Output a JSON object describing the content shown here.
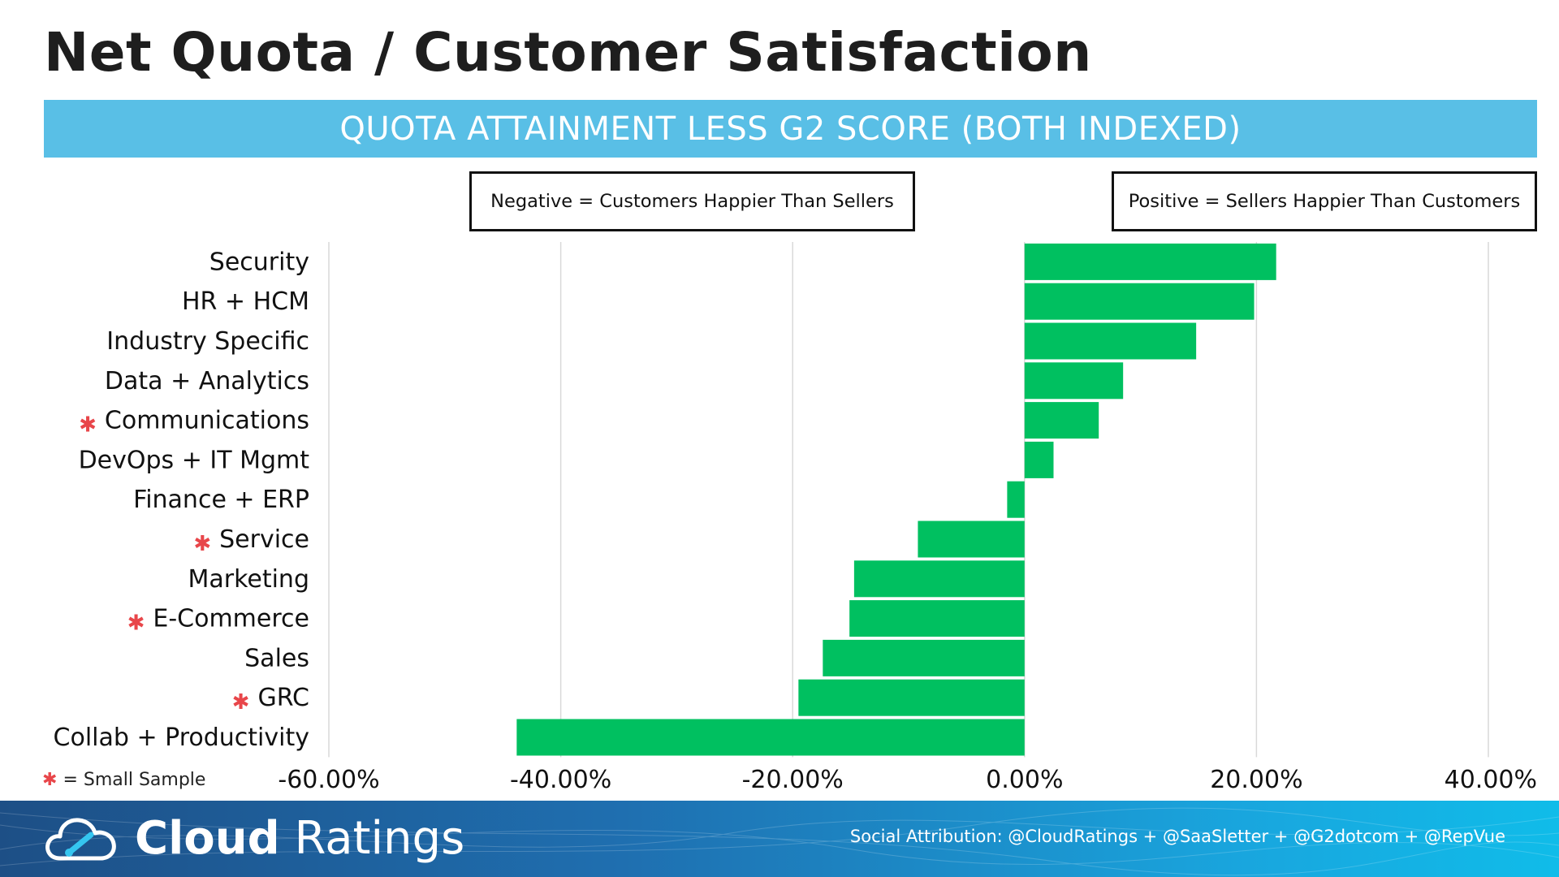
{
  "title": "Net Quota / Customer Satisfaction",
  "banner": "QUOTA ATTAINMENT LESS G2 SCORE (BOTH INDEXED)",
  "notes": {
    "negative": "Negative = Customers Happier Than Sellers",
    "positive": "Positive = Sellers Happier Than Customers"
  },
  "legend_note": {
    "star": "✱",
    "text": "= Small Sample"
  },
  "footer": {
    "brand_bold": "Cloud",
    "brand_light": " Ratings",
    "attribution": "Social Attribution: @CloudRatings + @SaaSletter + @G2dotcom + @RepVue",
    "logo_icon": "cloud-speedometer-icon"
  },
  "colors": {
    "bar": "#00c060",
    "banner": "#59bfe6",
    "small_sample_star": "#e8464a",
    "gridline": "#d9d9d9"
  },
  "chart_data": {
    "type": "bar",
    "orientation": "horizontal",
    "categories": [
      "Security",
      "HR + HCM",
      "Industry Specific",
      "Data + Analytics",
      "Communications",
      "DevOps + IT Mgmt",
      "Finance + ERP",
      "Service",
      "Marketing",
      "E-Commerce",
      "Sales",
      "GRC",
      "Collab + Productivity"
    ],
    "small_sample": [
      false,
      false,
      false,
      false,
      true,
      false,
      false,
      true,
      false,
      true,
      false,
      true,
      false
    ],
    "values": [
      21.7,
      19.8,
      14.8,
      8.5,
      6.4,
      2.5,
      -1.5,
      -9.2,
      -14.7,
      -15.1,
      -17.4,
      -19.5,
      -43.8
    ],
    "xlim": [
      -60,
      40
    ],
    "xticks": [
      "-60.00%",
      "-40.00%",
      "-20.00%",
      "0.00%",
      "20.00%",
      "40.00%"
    ],
    "xtick_values": [
      -60,
      -40,
      -20,
      0,
      20,
      40
    ],
    "grid": true,
    "xlabel": "",
    "ylabel": ""
  }
}
